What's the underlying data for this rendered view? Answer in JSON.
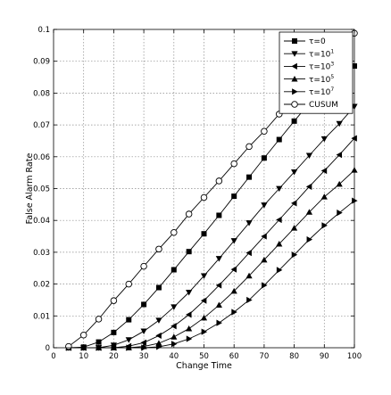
{
  "chart_data": {
    "type": "line",
    "xlabel": "Change Time",
    "ylabel": "False Alarm Rate",
    "xlim": [
      0,
      100
    ],
    "ylim": [
      0,
      0.1
    ],
    "xticks": [
      "0",
      "10",
      "20",
      "30",
      "40",
      "50",
      "60",
      "70",
      "80",
      "90",
      "100"
    ],
    "yticks": [
      "0",
      "0.01",
      "0.02",
      "0.03",
      "0.04",
      "0.05",
      "0.06",
      "0.07",
      "0.08",
      "0.09",
      "0.1"
    ],
    "grid": true,
    "legend_position": "top-right",
    "x": [
      5,
      10,
      15,
      20,
      25,
      30,
      35,
      40,
      45,
      50,
      55,
      60,
      65,
      70,
      75,
      80,
      85,
      90,
      95,
      100
    ],
    "series": [
      {
        "name": "τ=0",
        "legend_base": "τ=0",
        "legend_sup": "",
        "marker": "square",
        "values": [
          0.0,
          0.0002,
          0.0018,
          0.0048,
          0.0088,
          0.0136,
          0.0189,
          0.0245,
          0.0302,
          0.0358,
          0.0416,
          0.0476,
          0.0536,
          0.0596,
          0.0654,
          0.0712,
          0.0768,
          0.0815,
          0.0852,
          0.0885
        ]
      },
      {
        "name": "τ=10^1",
        "legend_base": "τ=10",
        "legend_sup": "1",
        "marker": "triangle-down",
        "values": [
          0.0,
          0.0,
          0.0,
          0.0008,
          0.0025,
          0.0052,
          0.0086,
          0.0128,
          0.0174,
          0.0226,
          0.028,
          0.0336,
          0.0392,
          0.0448,
          0.05,
          0.0552,
          0.0604,
          0.0656,
          0.0704,
          0.0758
        ]
      },
      {
        "name": "τ=10^3",
        "legend_base": "τ=10",
        "legend_sup": "3",
        "marker": "triangle-left",
        "values": [
          0.0,
          0.0,
          0.0,
          0.0,
          0.0005,
          0.0016,
          0.0038,
          0.0068,
          0.0104,
          0.0148,
          0.0196,
          0.0246,
          0.0298,
          0.035,
          0.0402,
          0.0454,
          0.0506,
          0.0556,
          0.0606,
          0.0658
        ]
      },
      {
        "name": "τ=10^5",
        "legend_base": "τ=10",
        "legend_sup": "5",
        "marker": "triangle-up",
        "values": [
          0.0,
          0.0,
          0.0,
          0.0,
          0.0,
          0.0004,
          0.0014,
          0.0034,
          0.006,
          0.0094,
          0.0134,
          0.0178,
          0.0226,
          0.0276,
          0.0326,
          0.0376,
          0.0426,
          0.0474,
          0.0514,
          0.0558
        ]
      },
      {
        "name": "τ=10^7",
        "legend_base": "τ=10",
        "legend_sup": "7",
        "marker": "triangle-right",
        "values": [
          0.0,
          0.0,
          0.0,
          0.0,
          0.0,
          0.0,
          0.0003,
          0.0012,
          0.0028,
          0.005,
          0.0078,
          0.0112,
          0.015,
          0.0196,
          0.0244,
          0.0292,
          0.034,
          0.0384,
          0.0424,
          0.0462
        ]
      },
      {
        "name": "CUSUM",
        "legend_base": "CUSUM",
        "legend_sup": "",
        "marker": "circle",
        "values": [
          0.0004,
          0.004,
          0.009,
          0.0148,
          0.02,
          0.0256,
          0.031,
          0.0362,
          0.042,
          0.0472,
          0.0524,
          0.0578,
          0.0632,
          0.068,
          0.0734,
          0.078,
          0.0828,
          0.0882,
          0.0938,
          0.0988
        ]
      }
    ]
  }
}
